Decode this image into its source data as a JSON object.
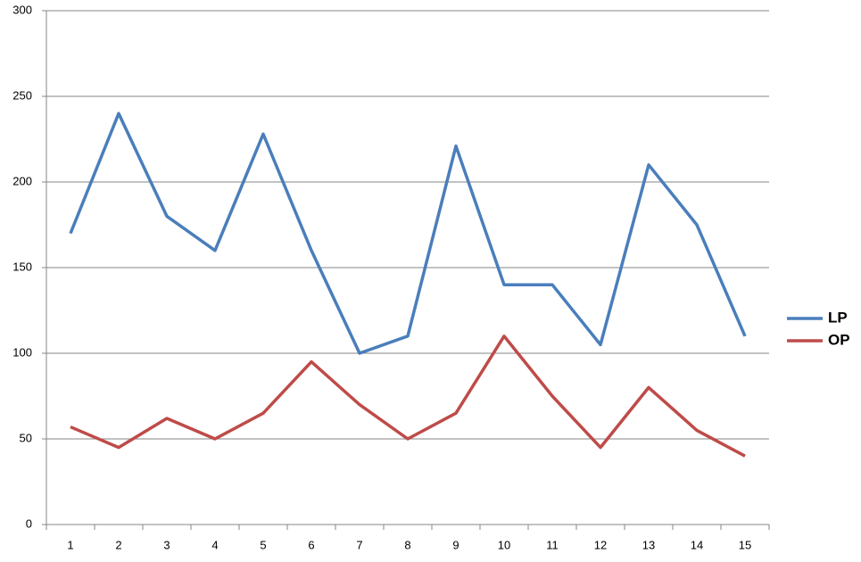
{
  "chart_data": {
    "type": "line",
    "categories": [
      "1",
      "2",
      "3",
      "4",
      "5",
      "6",
      "7",
      "8",
      "9",
      "10",
      "11",
      "12",
      "13",
      "14",
      "15"
    ],
    "series": [
      {
        "name": "LP",
        "color": "#4a7ebb",
        "values": [
          170,
          240,
          180,
          160,
          228,
          160,
          100,
          110,
          221,
          140,
          140,
          105,
          210,
          175,
          110
        ]
      },
      {
        "name": "OP",
        "color": "#be4b48",
        "values": [
          57,
          45,
          62,
          50,
          65,
          95,
          70,
          50,
          65,
          110,
          75,
          45,
          80,
          55,
          40
        ]
      }
    ],
    "ylim": [
      0,
      300
    ],
    "yticks": [
      0,
      50,
      100,
      150,
      200,
      250,
      300
    ],
    "grid": true,
    "legend": "right"
  }
}
